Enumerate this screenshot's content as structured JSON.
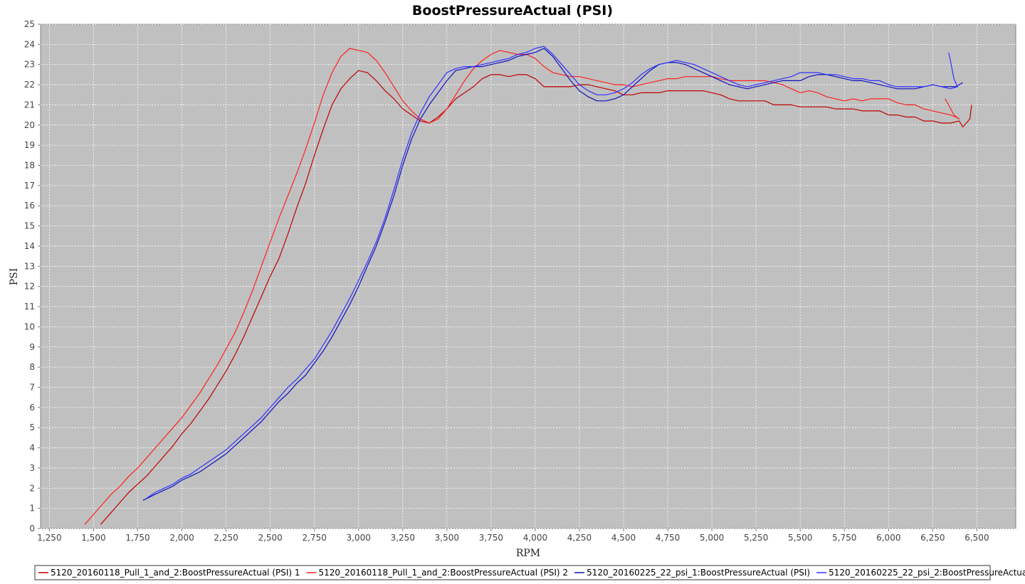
{
  "chart_data": {
    "type": "line",
    "title": "BoostPressureActual (PSI)",
    "xlabel": "RPM",
    "ylabel": "PSI",
    "xlim": [
      1200,
      6720
    ],
    "ylim": [
      0,
      25
    ],
    "x_ticks": [
      1250,
      1500,
      1750,
      2000,
      2250,
      2500,
      2750,
      3000,
      3250,
      3500,
      3750,
      4000,
      4250,
      4500,
      4750,
      5000,
      5250,
      5500,
      5750,
      6000,
      6250,
      6500
    ],
    "x_tick_labels": [
      "1,250",
      "1,500",
      "1,750",
      "2,000",
      "2,250",
      "2,500",
      "2,750",
      "3,000",
      "3,250",
      "3,500",
      "3,750",
      "4,000",
      "4,250",
      "4,500",
      "4,750",
      "5,000",
      "5,250",
      "5,500",
      "5,750",
      "6,000",
      "6,250",
      "6,500"
    ],
    "y_ticks": [
      0,
      1,
      2,
      3,
      4,
      5,
      6,
      7,
      8,
      9,
      10,
      11,
      12,
      13,
      14,
      15,
      16,
      17,
      18,
      19,
      20,
      21,
      22,
      23,
      24,
      25
    ],
    "y_tick_labels": [
      "0",
      "1",
      "2",
      "3",
      "4",
      "5",
      "6",
      "7",
      "8",
      "9",
      "10",
      "11",
      "12",
      "13",
      "14",
      "15",
      "16",
      "17",
      "18",
      "19",
      "20",
      "21",
      "22",
      "23",
      "24",
      "25"
    ],
    "grid": true,
    "legend_position": "bottom",
    "background_color": "#c0c0c0",
    "series": [
      {
        "name": "5120_20160118_Pull_1_and_2:BoostPressureActual (PSI) 1",
        "color": "#c00000",
        "x": [
          1540,
          1600,
          1650,
          1700,
          1750,
          1800,
          1850,
          1900,
          1950,
          2000,
          2050,
          2100,
          2150,
          2200,
          2250,
          2300,
          2350,
          2400,
          2450,
          2500,
          2550,
          2600,
          2650,
          2700,
          2750,
          2800,
          2850,
          2900,
          2950,
          3000,
          3050,
          3100,
          3150,
          3200,
          3250,
          3300,
          3350,
          3400,
          3450,
          3500,
          3550,
          3600,
          3650,
          3700,
          3750,
          3800,
          3850,
          3900,
          3950,
          4000,
          4050,
          4100,
          4150,
          4200,
          4250,
          4300,
          4350,
          4400,
          4450,
          4500,
          4550,
          4600,
          4650,
          4700,
          4750,
          4800,
          4850,
          4900,
          4950,
          5000,
          5050,
          5100,
          5150,
          5200,
          5250,
          5300,
          5350,
          5400,
          5450,
          5500,
          5550,
          5600,
          5650,
          5700,
          5750,
          5800,
          5850,
          5900,
          5950,
          6000,
          6050,
          6100,
          6150,
          6200,
          6250,
          6300,
          6350,
          6400,
          6420,
          6440,
          6460,
          6470
        ],
        "y": [
          0.2,
          0.8,
          1.3,
          1.8,
          2.2,
          2.6,
          3.1,
          3.6,
          4.1,
          4.7,
          5.2,
          5.8,
          6.4,
          7.1,
          7.8,
          8.6,
          9.5,
          10.5,
          11.5,
          12.5,
          13.4,
          14.6,
          15.9,
          17.1,
          18.5,
          19.8,
          21.0,
          21.8,
          22.3,
          22.7,
          22.6,
          22.2,
          21.7,
          21.3,
          20.8,
          20.5,
          20.2,
          20.1,
          20.4,
          20.8,
          21.3,
          21.6,
          21.9,
          22.3,
          22.5,
          22.5,
          22.4,
          22.5,
          22.5,
          22.3,
          21.9,
          21.9,
          21.9,
          21.9,
          22.0,
          22.0,
          21.9,
          21.8,
          21.7,
          21.5,
          21.5,
          21.6,
          21.6,
          21.6,
          21.7,
          21.7,
          21.7,
          21.7,
          21.7,
          21.6,
          21.5,
          21.3,
          21.2,
          21.2,
          21.2,
          21.2,
          21.0,
          21.0,
          21.0,
          20.9,
          20.9,
          20.9,
          20.9,
          20.8,
          20.8,
          20.8,
          20.7,
          20.7,
          20.7,
          20.5,
          20.5,
          20.4,
          20.4,
          20.2,
          20.2,
          20.1,
          20.1,
          20.2,
          19.9,
          20.1,
          20.3,
          21.0
        ]
      },
      {
        "name": "5120_20160118_Pull_1_and_2:BoostPressureActual (PSI) 2",
        "color": "#ff2020",
        "x": [
          1450,
          1500,
          1550,
          1600,
          1650,
          1700,
          1750,
          1800,
          1850,
          1900,
          1950,
          2000,
          2050,
          2100,
          2150,
          2200,
          2250,
          2300,
          2350,
          2400,
          2450,
          2500,
          2550,
          2600,
          2650,
          2700,
          2750,
          2800,
          2850,
          2900,
          2950,
          3000,
          3050,
          3100,
          3150,
          3200,
          3250,
          3300,
          3350,
          3400,
          3450,
          3500,
          3550,
          3600,
          3650,
          3700,
          3750,
          3800,
          3850,
          3900,
          3950,
          4000,
          4050,
          4100,
          4150,
          4200,
          4250,
          4300,
          4350,
          4400,
          4450,
          4500,
          4550,
          4600,
          4650,
          4700,
          4750,
          4800,
          4850,
          4900,
          4950,
          5000,
          5050,
          5100,
          5150,
          5200,
          5250,
          5300,
          5350,
          5400,
          5450,
          5500,
          5550,
          5600,
          5650,
          5700,
          5750,
          5800,
          5850,
          5900,
          5950,
          6000,
          6050,
          6100,
          6150,
          6200,
          6250,
          6300,
          6350,
          6380,
          6400,
          6370,
          6340,
          6320
        ],
        "y": [
          0.2,
          0.7,
          1.2,
          1.7,
          2.1,
          2.6,
          3.0,
          3.5,
          4.0,
          4.5,
          5.0,
          5.5,
          6.1,
          6.7,
          7.4,
          8.1,
          8.9,
          9.7,
          10.7,
          11.8,
          13.0,
          14.2,
          15.4,
          16.5,
          17.6,
          18.8,
          20.1,
          21.5,
          22.6,
          23.4,
          23.8,
          23.7,
          23.6,
          23.2,
          22.6,
          21.9,
          21.2,
          20.7,
          20.3,
          20.1,
          20.3,
          20.8,
          21.5,
          22.2,
          22.8,
          23.2,
          23.5,
          23.7,
          23.6,
          23.5,
          23.5,
          23.3,
          22.9,
          22.6,
          22.5,
          22.4,
          22.4,
          22.3,
          22.2,
          22.1,
          22.0,
          22.0,
          21.9,
          22.0,
          22.1,
          22.2,
          22.3,
          22.3,
          22.4,
          22.4,
          22.4,
          22.4,
          22.3,
          22.2,
          22.2,
          22.2,
          22.2,
          22.2,
          22.1,
          22.0,
          21.8,
          21.6,
          21.7,
          21.6,
          21.4,
          21.3,
          21.2,
          21.3,
          21.2,
          21.3,
          21.3,
          21.3,
          21.1,
          21.0,
          21.0,
          20.8,
          20.7,
          20.6,
          20.5,
          20.4,
          20.3,
          20.5,
          21.0,
          21.3
        ]
      },
      {
        "name": "5120_20160225_22_psi_1:BoostPressureActual (PSI)",
        "color": "#1010c0",
        "x": [
          1780,
          1850,
          1900,
          1950,
          2000,
          2050,
          2100,
          2150,
          2200,
          2250,
          2300,
          2350,
          2400,
          2450,
          2500,
          2550,
          2600,
          2650,
          2700,
          2750,
          2800,
          2850,
          2900,
          2950,
          3000,
          3050,
          3100,
          3150,
          3200,
          3250,
          3300,
          3350,
          3400,
          3450,
          3500,
          3550,
          3600,
          3650,
          3700,
          3750,
          3800,
          3850,
          3900,
          3950,
          4000,
          4050,
          4100,
          4150,
          4200,
          4250,
          4300,
          4350,
          4400,
          4450,
          4500,
          4550,
          4600,
          4650,
          4700,
          4750,
          4800,
          4850,
          4900,
          4950,
          5000,
          5050,
          5100,
          5150,
          5200,
          5250,
          5300,
          5350,
          5400,
          5450,
          5500,
          5550,
          5600,
          5650,
          5700,
          5750,
          5800,
          5850,
          5900,
          5950,
          6000,
          6050,
          6100,
          6150,
          6200,
          6250,
          6300,
          6350,
          6380,
          6400,
          6420
        ],
        "y": [
          1.4,
          1.7,
          1.9,
          2.1,
          2.4,
          2.6,
          2.8,
          3.1,
          3.4,
          3.7,
          4.1,
          4.5,
          4.9,
          5.3,
          5.8,
          6.3,
          6.7,
          7.2,
          7.6,
          8.2,
          8.8,
          9.5,
          10.3,
          11.1,
          12.0,
          13.0,
          14.0,
          15.2,
          16.5,
          18.0,
          19.3,
          20.3,
          21.0,
          21.6,
          22.2,
          22.7,
          22.8,
          22.9,
          22.9,
          23.0,
          23.1,
          23.2,
          23.4,
          23.5,
          23.6,
          23.8,
          23.4,
          22.8,
          22.2,
          21.7,
          21.4,
          21.2,
          21.2,
          21.3,
          21.5,
          21.9,
          22.3,
          22.7,
          23.0,
          23.1,
          23.1,
          23.0,
          22.8,
          22.6,
          22.4,
          22.2,
          22.0,
          21.9,
          21.8,
          21.9,
          22.0,
          22.1,
          22.2,
          22.2,
          22.2,
          22.4,
          22.5,
          22.5,
          22.4,
          22.3,
          22.2,
          22.2,
          22.1,
          22.0,
          21.9,
          21.8,
          21.8,
          21.8,
          21.9,
          22.0,
          21.9,
          21.9,
          21.9,
          22.0,
          22.1
        ]
      },
      {
        "name": "5120_20160225_22_psi_2:BoostPressureActual (PSI)",
        "color": "#3030ff",
        "x": [
          1800,
          1850,
          1900,
          1950,
          2000,
          2050,
          2100,
          2150,
          2200,
          2250,
          2300,
          2350,
          2400,
          2450,
          2500,
          2550,
          2600,
          2650,
          2700,
          2750,
          2800,
          2850,
          2900,
          2950,
          3000,
          3050,
          3100,
          3150,
          3200,
          3250,
          3300,
          3350,
          3400,
          3450,
          3500,
          3550,
          3600,
          3650,
          3700,
          3750,
          3800,
          3850,
          3900,
          3950,
          4000,
          4050,
          4100,
          4150,
          4200,
          4250,
          4300,
          4350,
          4400,
          4450,
          4500,
          4550,
          4600,
          4650,
          4700,
          4750,
          4800,
          4850,
          4900,
          4950,
          5000,
          5050,
          5100,
          5150,
          5200,
          5250,
          5300,
          5350,
          5400,
          5450,
          5500,
          5550,
          5600,
          5650,
          5700,
          5750,
          5800,
          5850,
          5900,
          5950,
          6000,
          6050,
          6100,
          6150,
          6200,
          6250,
          6300,
          6350,
          6390,
          6370,
          6350,
          6340
        ],
        "y": [
          1.5,
          1.8,
          2.0,
          2.2,
          2.5,
          2.7,
          3.0,
          3.3,
          3.6,
          3.9,
          4.3,
          4.7,
          5.1,
          5.5,
          6.0,
          6.5,
          7.0,
          7.4,
          7.9,
          8.4,
          9.1,
          9.8,
          10.6,
          11.4,
          12.3,
          13.2,
          14.2,
          15.4,
          16.8,
          18.3,
          19.6,
          20.6,
          21.4,
          22.0,
          22.6,
          22.8,
          22.9,
          22.9,
          23.0,
          23.1,
          23.2,
          23.3,
          23.5,
          23.6,
          23.8,
          23.9,
          23.5,
          23.0,
          22.5,
          22.0,
          21.7,
          21.5,
          21.5,
          21.6,
          21.8,
          22.1,
          22.5,
          22.8,
          23.0,
          23.1,
          23.2,
          23.1,
          23.0,
          22.8,
          22.6,
          22.4,
          22.2,
          22.0,
          21.9,
          22.0,
          22.1,
          22.2,
          22.3,
          22.4,
          22.6,
          22.6,
          22.6,
          22.5,
          22.5,
          22.4,
          22.3,
          22.3,
          22.2,
          22.2,
          22.0,
          21.9,
          21.9,
          21.9,
          21.9,
          22.0,
          21.9,
          21.8,
          21.9,
          22.3,
          23.2,
          23.6
        ]
      }
    ]
  }
}
